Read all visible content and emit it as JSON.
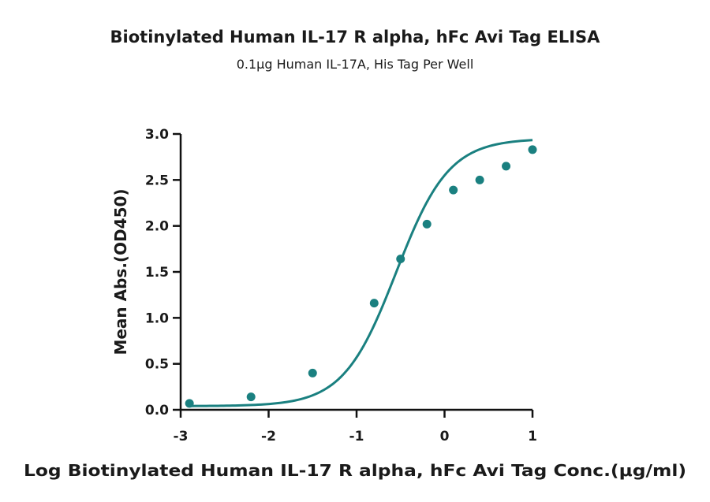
{
  "chart_data": {
    "type": "scatter",
    "title": "Biotinylated Human IL-17 R alpha, hFc Avi Tag ELISA",
    "subtitle": "0.1μg Human IL-17A, His Tag Per Well",
    "xlabel": "Log Biotinylated Human IL-17 R alpha, hFc Avi Tag Conc.(μg/ml)",
    "ylabel": "Mean Abs.(OD450)",
    "xlim": [
      -3,
      1
    ],
    "ylim": [
      0,
      3
    ],
    "xticks": [
      "-3",
      "-2",
      "-1",
      "0",
      "1"
    ],
    "yticks": [
      "0.0",
      "0.5",
      "1.0",
      "1.5",
      "2.0",
      "2.5",
      "3.0"
    ],
    "grid": false,
    "colors": {
      "series": "#1a8080"
    },
    "series": [
      {
        "x": [
          -2.9,
          -2.2,
          -1.5,
          -0.8,
          -0.5,
          -0.2,
          0.1,
          0.4,
          0.7,
          1.0
        ],
        "y": [
          0.07,
          0.14,
          0.4,
          1.16,
          1.64,
          2.02,
          2.39,
          2.5,
          2.65,
          2.83
        ],
        "fit": "four-parameter logistic curve"
      }
    ]
  }
}
